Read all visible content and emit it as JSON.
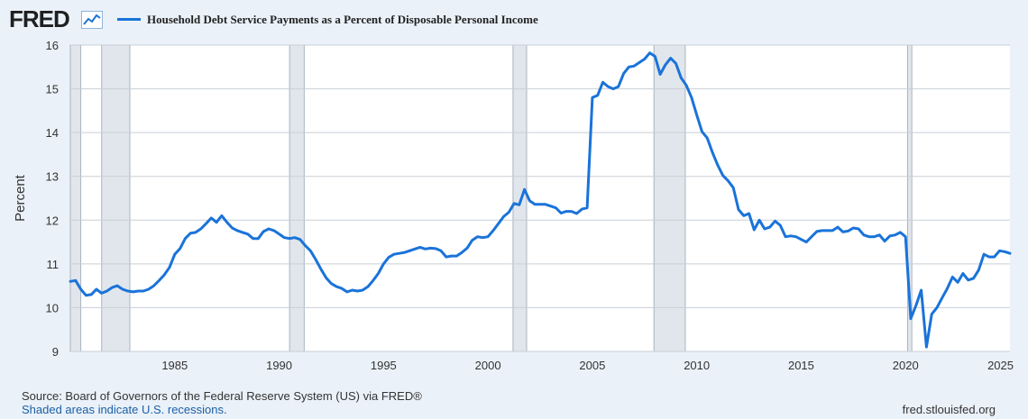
{
  "header": {
    "logo_text": "FRED",
    "logo_icon": "line-chart-icon",
    "legend_label": "Household Debt Service Payments as a Percent of Disposable Personal Income"
  },
  "footer": {
    "source": "Source: Board of Governors of the Federal Reserve System (US) via FRED®",
    "shaded_note": "Shaded areas indicate U.S. recessions.",
    "url": "fred.stlouisfed.org"
  },
  "colors": {
    "series": "#1a73d9",
    "recession": "#e1e6ec",
    "background": "#eaf1f8",
    "plot": "#ffffff"
  },
  "chart_data": {
    "type": "line",
    "title": "",
    "ylabel": "Percent",
    "xlabel": "",
    "xlim": [
      1980.0,
      2025.0
    ],
    "ylim": [
      9,
      16
    ],
    "x_ticks": [
      1985,
      1990,
      1995,
      2000,
      2005,
      2010,
      2015,
      2020,
      2025
    ],
    "y_ticks": [
      9,
      10,
      11,
      12,
      13,
      14,
      15,
      16
    ],
    "grid": true,
    "legend_position": "top",
    "recessions": [
      [
        1980.0,
        1980.5
      ],
      [
        1981.5,
        1982.85
      ],
      [
        1990.5,
        1991.2
      ],
      [
        2001.2,
        2001.85
      ],
      [
        2007.95,
        2009.45
      ],
      [
        2020.1,
        2020.3
      ]
    ],
    "series": [
      {
        "name": "Household Debt Service Payments as a Percent of Disposable Personal Income",
        "x": [
          1980.0,
          1980.25,
          1980.5,
          1980.75,
          1981.0,
          1981.25,
          1981.5,
          1981.75,
          1982.0,
          1982.25,
          1982.5,
          1982.75,
          1983.0,
          1983.25,
          1983.5,
          1983.75,
          1984.0,
          1984.25,
          1984.5,
          1984.75,
          1985.0,
          1985.25,
          1985.5,
          1985.75,
          1986.0,
          1986.25,
          1986.5,
          1986.75,
          1987.0,
          1987.25,
          1987.5,
          1987.75,
          1988.0,
          1988.25,
          1988.5,
          1988.75,
          1989.0,
          1989.25,
          1989.5,
          1989.75,
          1990.0,
          1990.25,
          1990.5,
          1990.75,
          1991.0,
          1991.25,
          1991.5,
          1991.75,
          1992.0,
          1992.25,
          1992.5,
          1992.75,
          1993.0,
          1993.25,
          1993.5,
          1993.75,
          1994.0,
          1994.25,
          1994.5,
          1994.75,
          1995.0,
          1995.25,
          1995.5,
          1995.75,
          1996.0,
          1996.25,
          1996.5,
          1996.75,
          1997.0,
          1997.25,
          1997.5,
          1997.75,
          1998.0,
          1998.25,
          1998.5,
          1998.75,
          1999.0,
          1999.25,
          1999.5,
          1999.75,
          2000.0,
          2000.25,
          2000.5,
          2000.75,
          2001.0,
          2001.25,
          2001.5,
          2001.75,
          2002.0,
          2002.25,
          2002.5,
          2002.75,
          2003.0,
          2003.25,
          2003.5,
          2003.75,
          2004.0,
          2004.25,
          2004.5,
          2004.75,
          2005.0,
          2005.25,
          2005.5,
          2005.75,
          2006.0,
          2006.25,
          2006.5,
          2006.75,
          2007.0,
          2007.25,
          2007.5,
          2007.75,
          2008.0,
          2008.25,
          2008.5,
          2008.75,
          2009.0,
          2009.25,
          2009.5,
          2009.75,
          2010.0,
          2010.25,
          2010.5,
          2010.75,
          2011.0,
          2011.25,
          2011.5,
          2011.75,
          2012.0,
          2012.25,
          2012.5,
          2012.75,
          2013.0,
          2013.25,
          2013.5,
          2013.75,
          2014.0,
          2014.25,
          2014.5,
          2014.75,
          2015.0,
          2015.25,
          2015.5,
          2015.75,
          2016.0,
          2016.25,
          2016.5,
          2016.75,
          2017.0,
          2017.25,
          2017.5,
          2017.75,
          2018.0,
          2018.25,
          2018.5,
          2018.75,
          2019.0,
          2019.25,
          2019.5,
          2019.75,
          2020.0,
          2020.25,
          2020.5,
          2020.75,
          2021.0,
          2021.25,
          2021.5,
          2021.75,
          2022.0,
          2022.25,
          2022.5,
          2022.75,
          2023.0,
          2023.25,
          2023.5,
          2023.75,
          2024.0,
          2024.25,
          2024.5,
          2024.75,
          2025.0
        ],
        "values": [
          10.6,
          10.62,
          10.42,
          10.28,
          10.3,
          10.42,
          10.33,
          10.38,
          10.46,
          10.5,
          10.42,
          10.38,
          10.36,
          10.38,
          10.38,
          10.42,
          10.5,
          10.62,
          10.75,
          10.92,
          11.22,
          11.35,
          11.58,
          11.7,
          11.72,
          11.8,
          11.92,
          12.05,
          11.95,
          12.1,
          11.95,
          11.82,
          11.76,
          11.72,
          11.68,
          11.58,
          11.58,
          11.74,
          11.8,
          11.76,
          11.68,
          11.6,
          11.58,
          11.6,
          11.56,
          11.42,
          11.3,
          11.1,
          10.88,
          10.68,
          10.55,
          10.48,
          10.44,
          10.36,
          10.4,
          10.38,
          10.4,
          10.48,
          10.62,
          10.78,
          11.0,
          11.15,
          11.22,
          11.24,
          11.26,
          11.3,
          11.34,
          11.38,
          11.34,
          11.36,
          11.35,
          11.3,
          11.16,
          11.18,
          11.18,
          11.26,
          11.36,
          11.54,
          11.62,
          11.6,
          11.62,
          11.76,
          11.92,
          12.08,
          12.18,
          12.38,
          12.35,
          12.7,
          12.44,
          12.36,
          12.36,
          12.36,
          12.32,
          12.28,
          12.16,
          12.2,
          12.2,
          12.15,
          12.25,
          12.28,
          14.8,
          14.85,
          15.15,
          15.05,
          15.0,
          15.05,
          15.35,
          15.5,
          15.52,
          15.6,
          15.68,
          15.82,
          15.74,
          15.33,
          15.55,
          15.7,
          15.58,
          15.25,
          15.08,
          14.8,
          14.4,
          14.02,
          13.88,
          13.55,
          13.26,
          13.02,
          12.9,
          12.74,
          12.24,
          12.1,
          12.15,
          11.78,
          12.0,
          11.8,
          11.84,
          11.98,
          11.88,
          11.62,
          11.64,
          11.62,
          11.56,
          11.5,
          11.62,
          11.74,
          11.76,
          11.76,
          11.76,
          11.84,
          11.73,
          11.75,
          11.82,
          11.8,
          11.66,
          11.62,
          11.62,
          11.66,
          11.52,
          11.64,
          11.66,
          11.72,
          11.62,
          9.75,
          10.05,
          10.4,
          9.1,
          9.85,
          10.0,
          10.22,
          10.44,
          10.7,
          10.58,
          10.78,
          10.63,
          10.67,
          10.86,
          11.22,
          11.16,
          11.16,
          11.3,
          11.28,
          11.24
        ]
      }
    ]
  }
}
